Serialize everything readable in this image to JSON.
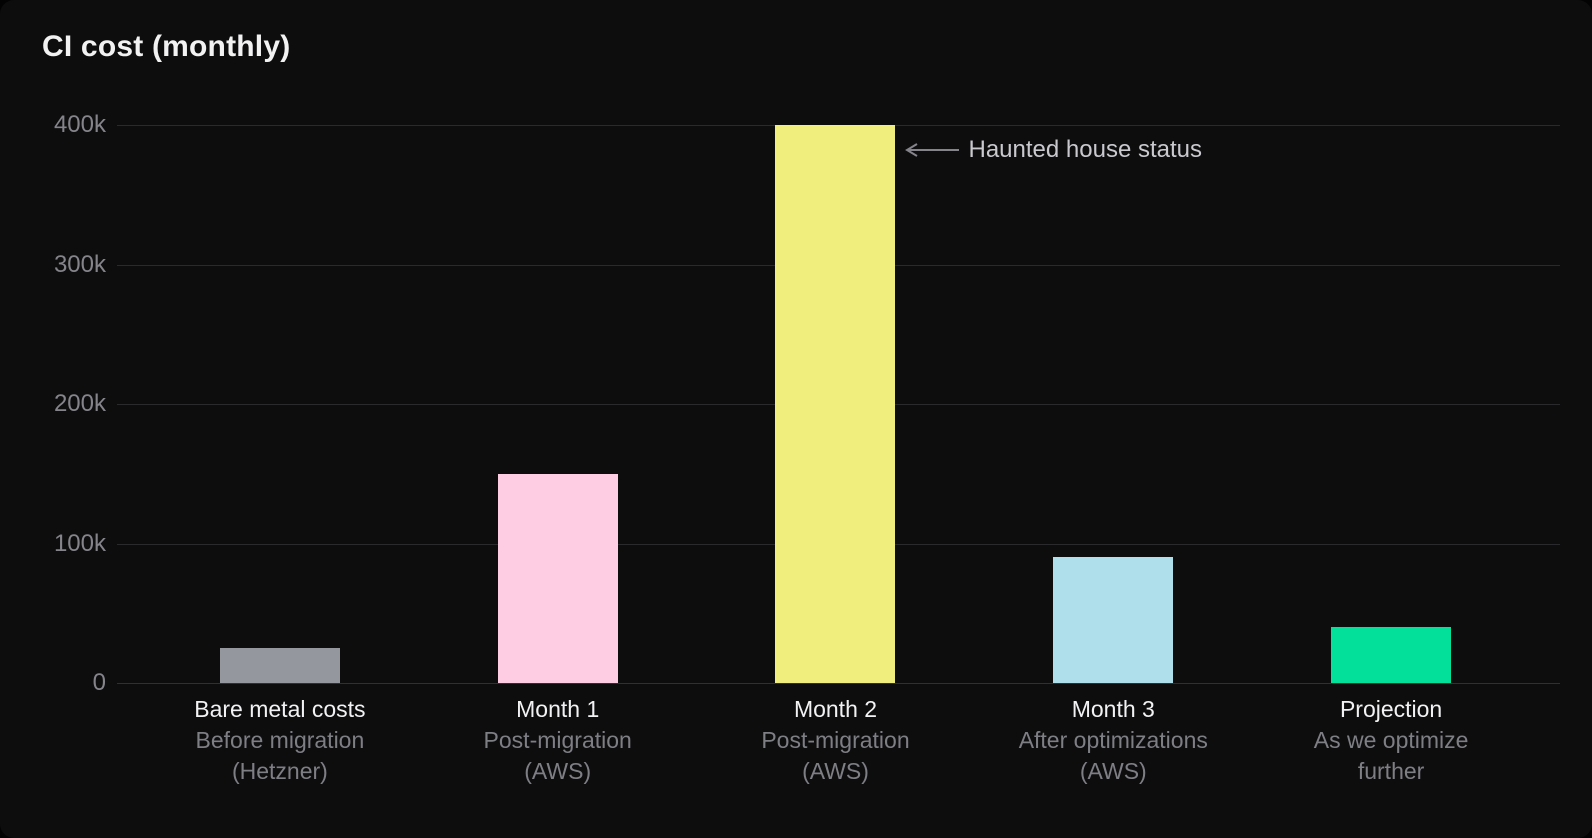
{
  "title": "CI cost (monthly)",
  "palette": {
    "background": "#0d0d0e",
    "gridline": "#2a2a2c",
    "tick_text": "#84848a",
    "label_text": "#f2f2f4",
    "sublabel_text": "#7e7e85",
    "annotation_text": "#c9c9ce",
    "annotation_arrow": "#84848a"
  },
  "chart_data": {
    "type": "bar",
    "title": "CI cost (monthly)",
    "xlabel": "",
    "ylabel": "",
    "ylim": [
      0,
      400000
    ],
    "grid": true,
    "legend": false,
    "y_ticks": [
      "400k",
      "300k",
      "200k",
      "100k",
      "0"
    ],
    "categories": [
      "Bare metal costs",
      "Month 1",
      "Month 2",
      "Month 3",
      "Projection"
    ],
    "values": [
      25000,
      150000,
      400000,
      90000,
      40000
    ],
    "bars": [
      {
        "label": "Bare metal costs",
        "sub1": "Before migration",
        "sub2": "(Hetzner)",
        "value": 25000,
        "color": "#95979e"
      },
      {
        "label": "Month 1",
        "sub1": "Post-migration",
        "sub2": "(AWS)",
        "value": 150000,
        "color": "#fecde4"
      },
      {
        "label": "Month 2",
        "sub1": "Post-migration",
        "sub2": "(AWS)",
        "value": 400000,
        "color": "#f0ee7d"
      },
      {
        "label": "Month 3",
        "sub1": "After optimizations",
        "sub2": "(AWS)",
        "value": 90000,
        "color": "#afdfea"
      },
      {
        "label": "Projection",
        "sub1": "As we optimize",
        "sub2": "further",
        "value": 40000,
        "color": "#03e09a"
      }
    ],
    "annotation": {
      "text": "Haunted house status",
      "arrow_direction": "left",
      "target": "Month 2"
    }
  }
}
